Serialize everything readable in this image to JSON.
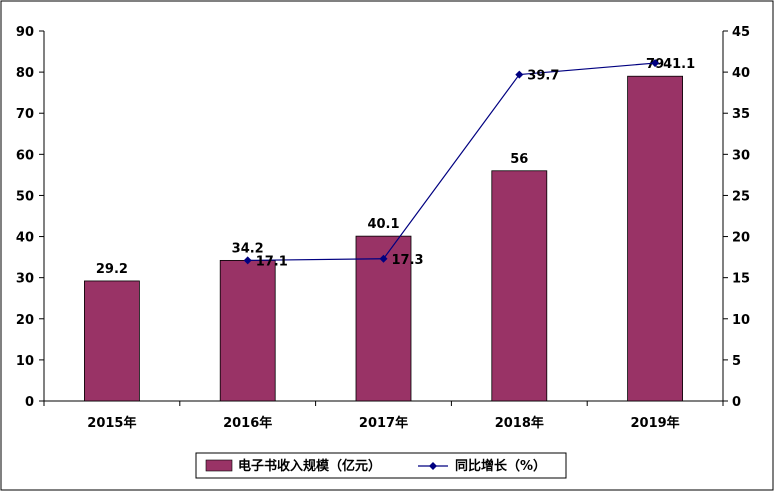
{
  "chart_data": {
    "type": "bar",
    "categories": [
      "2015年",
      "2016年",
      "2017年",
      "2018年",
      "2019年"
    ],
    "series": [
      {
        "name": "电子书收入规模（亿元）",
        "type": "bar",
        "axis": "left",
        "values": [
          29.2,
          34.2,
          40.1,
          56,
          79
        ],
        "labels": [
          "29.2",
          "34.2",
          "40.1",
          "56",
          "79"
        ],
        "color": "#993366"
      },
      {
        "name": "同比增长（%）",
        "type": "line",
        "axis": "right",
        "values": [
          null,
          17.1,
          17.3,
          39.7,
          41.1
        ],
        "labels": [
          "",
          "17.1",
          "17.3",
          "39.7",
          "41.1"
        ],
        "color": "#000080"
      }
    ],
    "y_left": {
      "min": 0,
      "max": 90,
      "step": 10,
      "ticks": [
        "0",
        "10",
        "20",
        "30",
        "40",
        "50",
        "60",
        "70",
        "80",
        "90"
      ]
    },
    "y_right": {
      "min": 0,
      "max": 45,
      "step": 5,
      "ticks": [
        "0",
        "5",
        "10",
        "15",
        "20",
        "25",
        "30",
        "35",
        "40",
        "45"
      ]
    },
    "title": "",
    "xlabel": "",
    "ylabel": "",
    "grid": false,
    "legend": {
      "position": "bottom",
      "entries": [
        "电子书收入规模（亿元）",
        "同比增长（%）"
      ]
    }
  }
}
